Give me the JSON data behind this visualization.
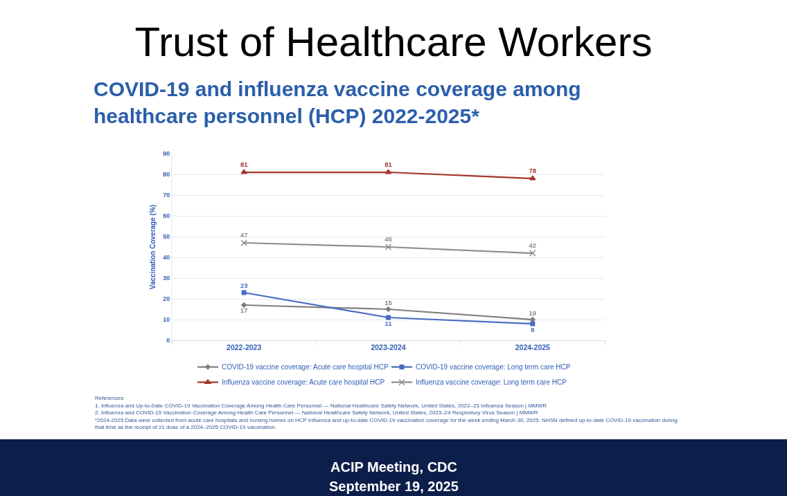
{
  "chart_data": {
    "type": "line",
    "title": "Trust of Healthcare Workers",
    "subtitle": "COVID-19 and influenza vaccine coverage among healthcare personnel (HCP) 2022-2025*",
    "ylabel": "Vaccination Coverage (%)",
    "categories": [
      "2022-2023",
      "2023-2024",
      "2024-2025"
    ],
    "series": [
      {
        "name": "COVID-19 vaccine coverage: Acute care hospital HCP",
        "color": "#7f7f7f",
        "marker": "diamond",
        "values": [
          17,
          15,
          10
        ]
      },
      {
        "name": "COVID-19 vaccine coverage: Long term care HCP",
        "color": "#4a6bc0",
        "marker": "square",
        "values": [
          23,
          11,
          8
        ]
      },
      {
        "name": "Influenza vaccine coverage: Acute care hospital HCP",
        "color": "#a3372c",
        "marker": "triangle",
        "values": [
          81,
          81,
          78
        ]
      },
      {
        "name": "Influenza vaccine coverage: Long term care HCP",
        "color": "#8c8c8c",
        "marker": "cross",
        "values": [
          47,
          45,
          42
        ]
      }
    ],
    "ylim": [
      0,
      90
    ],
    "yticks": [
      0,
      10,
      20,
      30,
      40,
      50,
      60,
      70,
      80,
      90
    ],
    "grid": "y",
    "legend": "bottom",
    "data_labels": true,
    "annotations": [
      "References:",
      "1. Influenza and Up-to-Date COVID-19 Vaccination Coverage Among Health Care Personnel — National Healthcare Safety Network, United States, 2022–23 Influenza Season | MMWR",
      "2. Influenza and COVID-19 Vaccination Coverage Among Health Care Personnel — National Healthcare Safety Network, United States, 2023–24 Respiratory Virus Season | MMWR",
      "*2024-2025 Data were collected from acute care hospitals and nursing homes on HCP influenza and up-to-date COVID-19 vaccination coverage for the week ending March 30, 2025. NHSN defined up-to-date COVID-19 vaccination during that time as the receipt of ≥1 dose of a 2024–2025 COVID-19 vaccination.",
      "ACIP Meeting, CDC",
      "September 19, 2025"
    ]
  }
}
